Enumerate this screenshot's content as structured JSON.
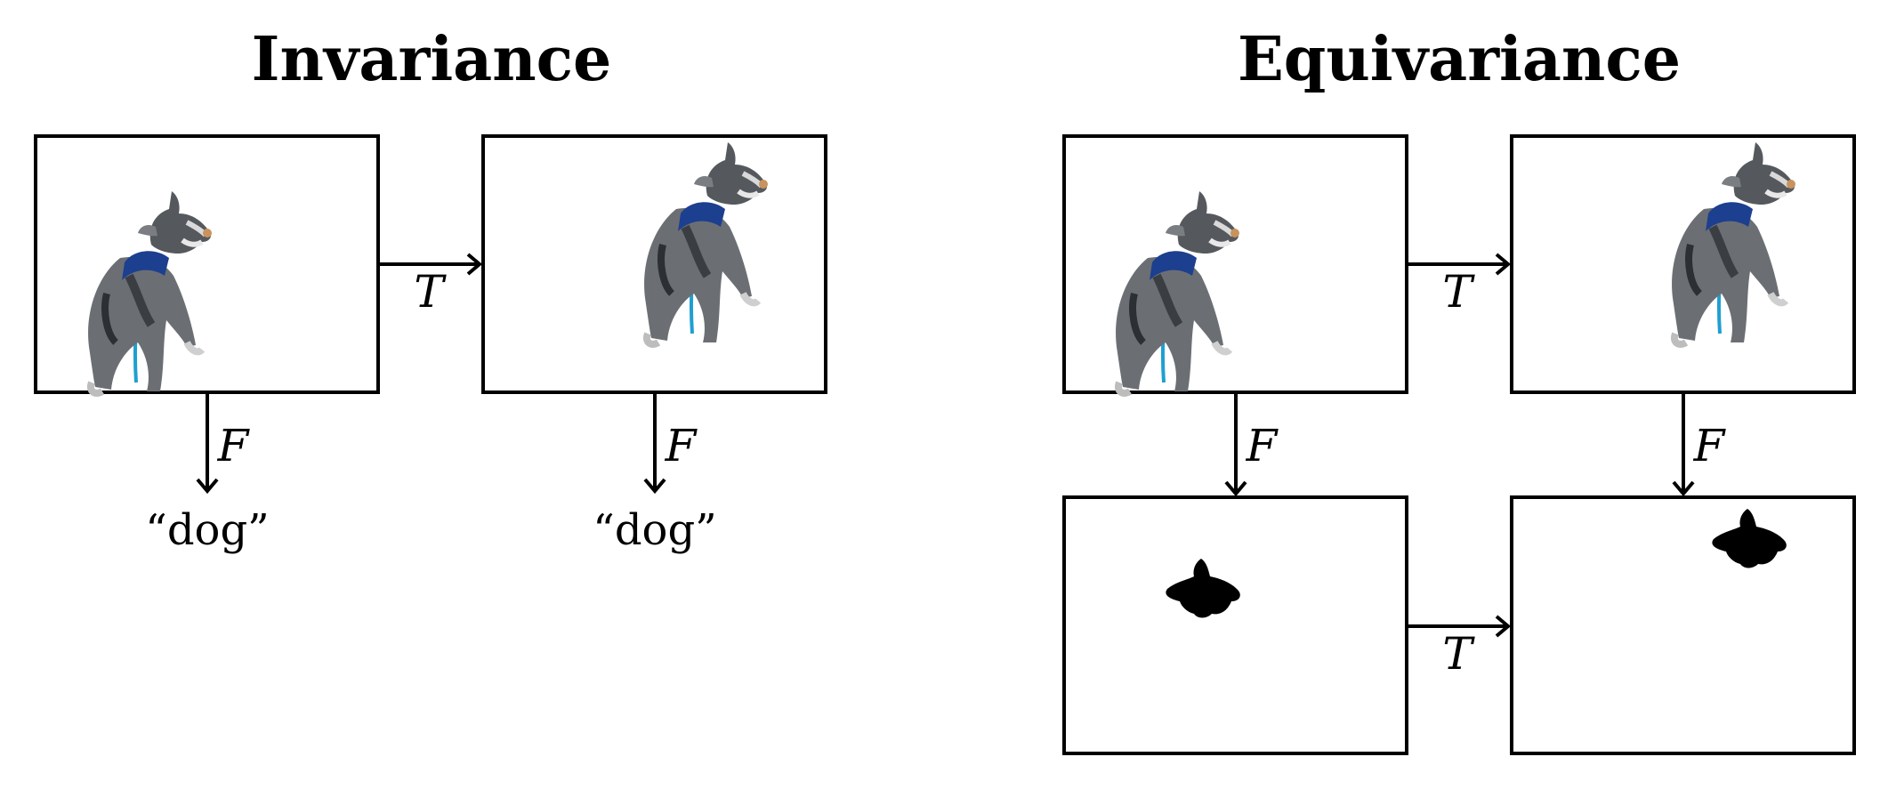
{
  "invariance": {
    "title": "Invariance",
    "transform_label": "T",
    "function_label_left": "F",
    "function_label_right": "F",
    "output_left": "“dog”",
    "output_right": "“dog”"
  },
  "equivariance": {
    "title": "Equivariance",
    "transform_label_top": "T",
    "transform_label_bottom": "T",
    "function_label_left": "F",
    "function_label_right": "F"
  },
  "colors": {
    "line": "#000000",
    "fur": "#6b6f74",
    "fur_dark": "#2c2f33",
    "leash": "#1f9fd0",
    "harness": "#1c3f8f",
    "mask": "#000000"
  }
}
